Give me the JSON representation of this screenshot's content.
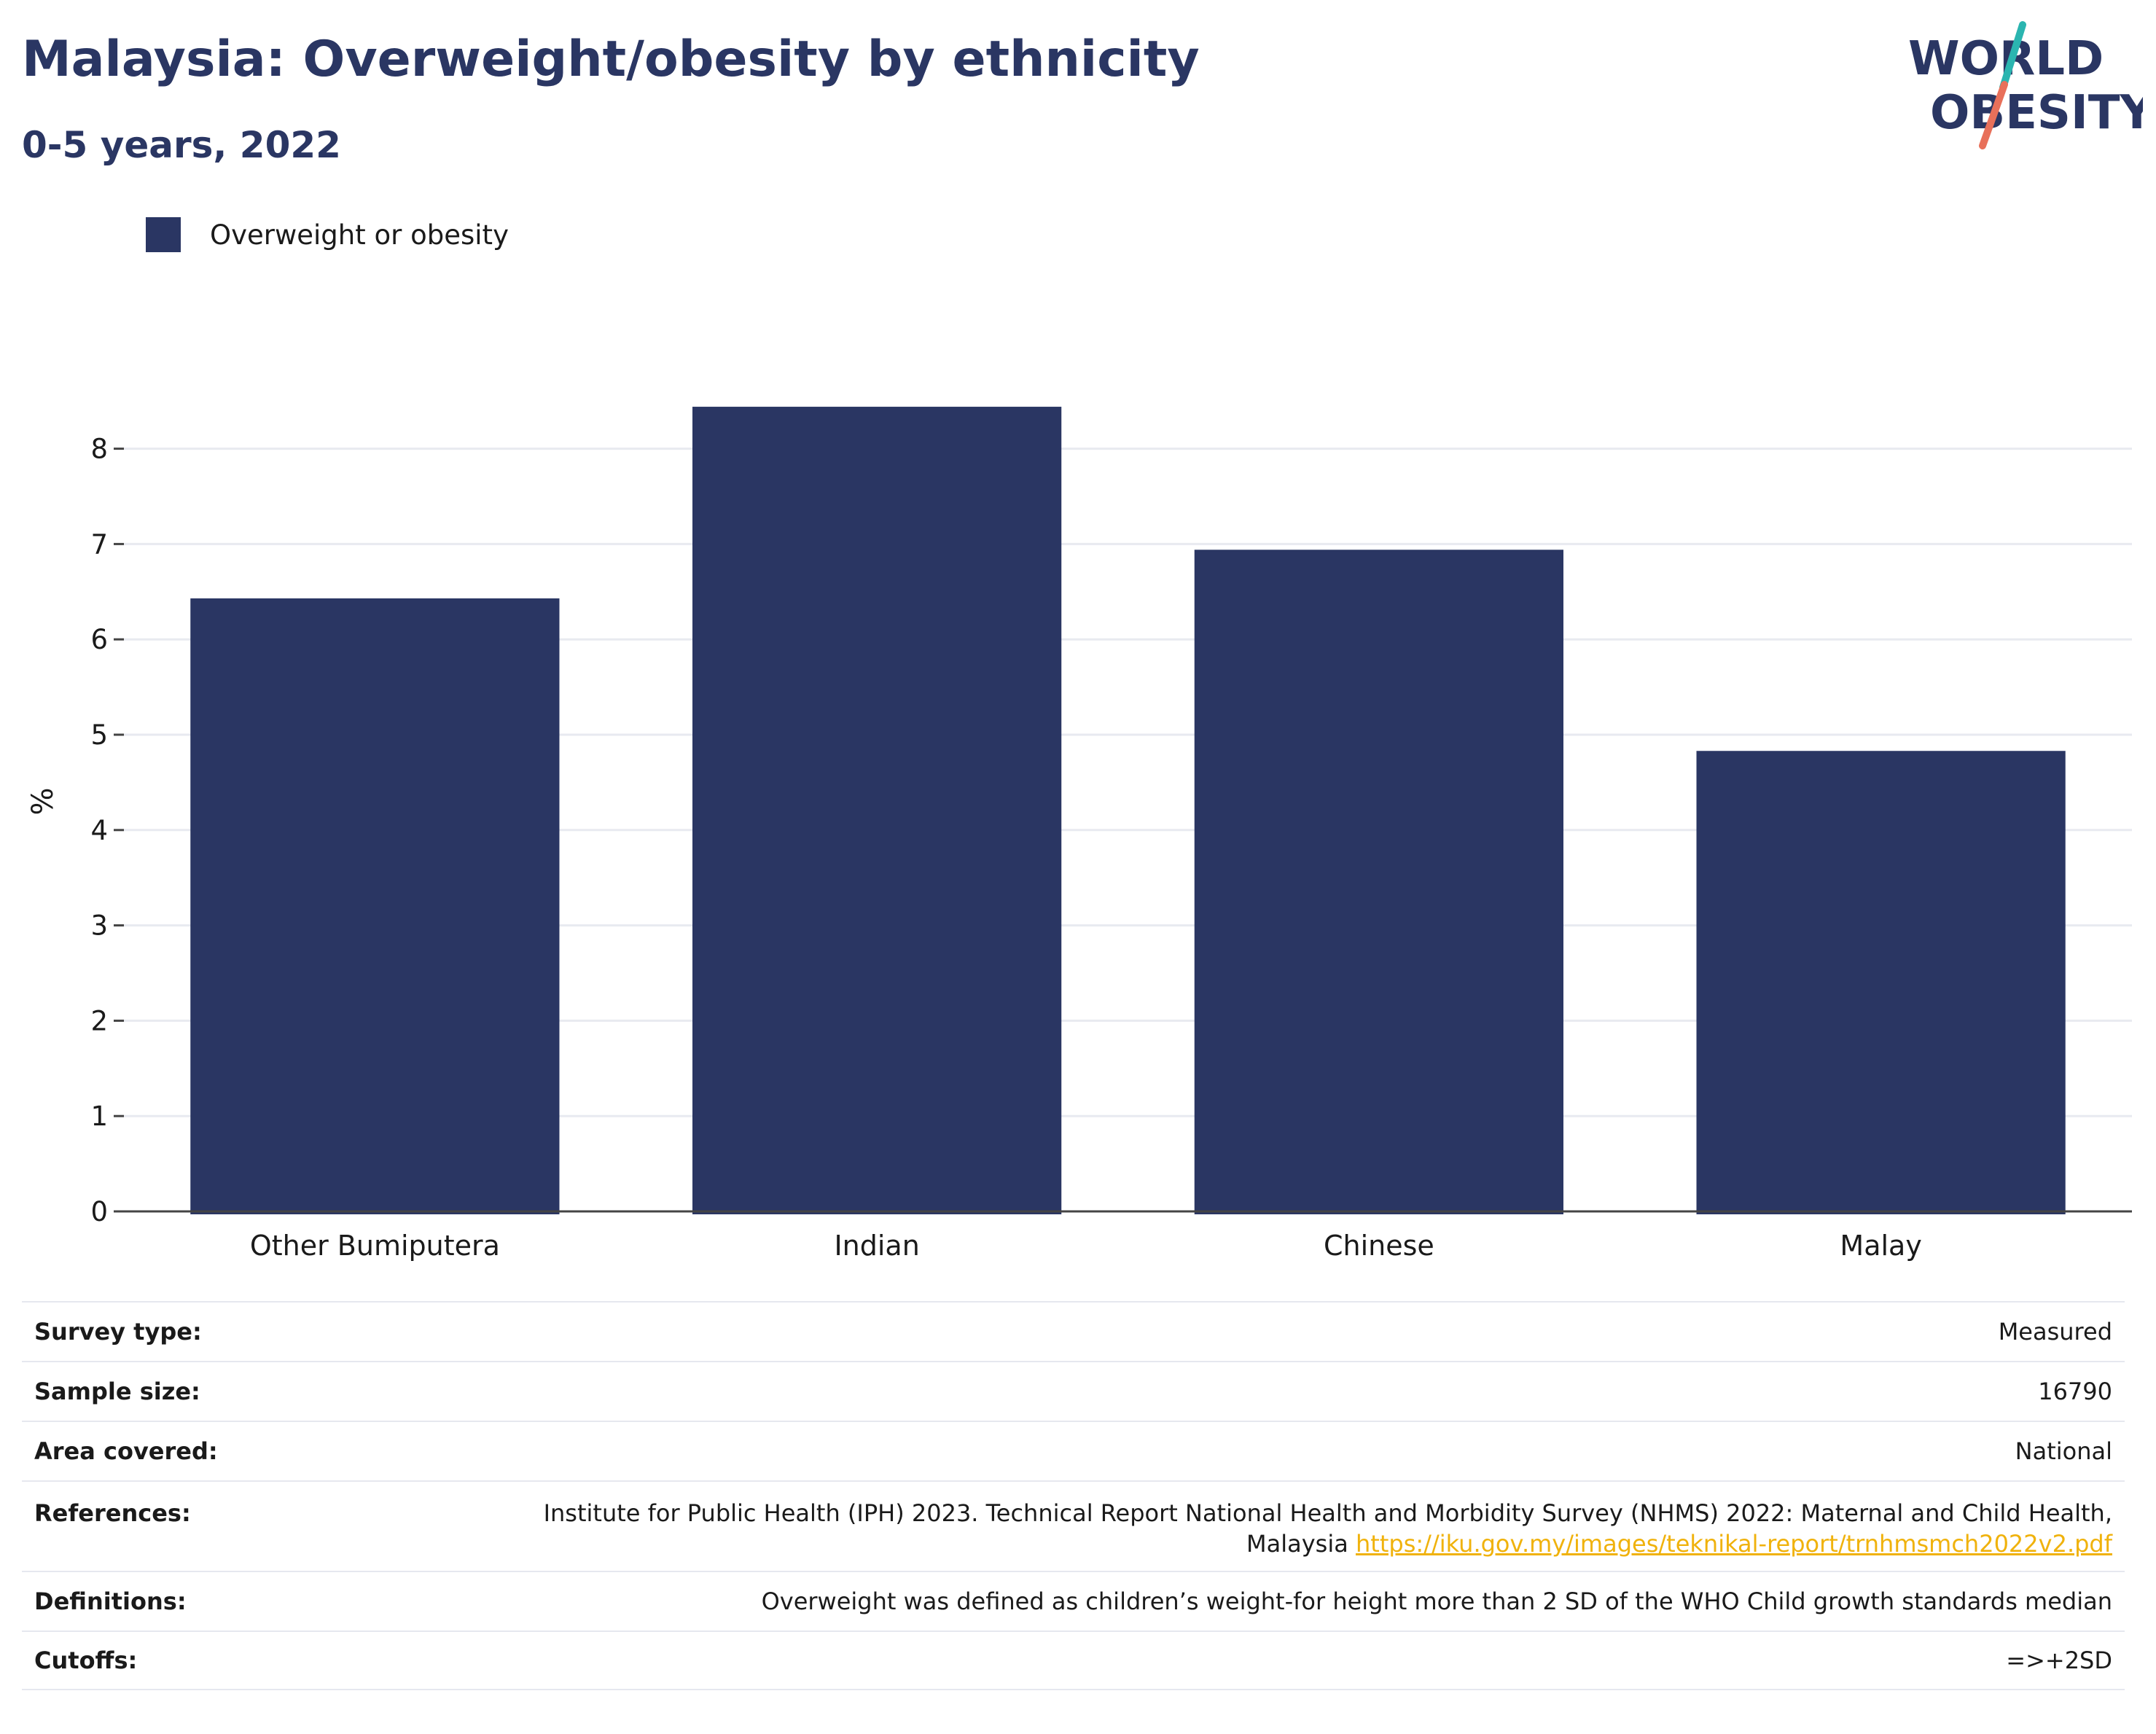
{
  "header": {
    "title": "Malaysia: Overweight/obesity by ethnicity",
    "subtitle": "0-5 years, 2022"
  },
  "logo": {
    "line1": "WORLD",
    "line2": "OBESITY",
    "accent_colors": [
      "#2bb5b0",
      "#e8705a"
    ]
  },
  "legend": {
    "label": "Overweight or obesity",
    "color": "#2a3663"
  },
  "chart_data": {
    "type": "bar",
    "categories": [
      "Other Bumiputera",
      "Indian",
      "Chinese",
      "Malay"
    ],
    "series": [
      {
        "name": "Overweight or obesity",
        "values": [
          6.43,
          8.44,
          6.94,
          4.83
        ]
      }
    ],
    "ylabel": "%",
    "ylim": [
      0,
      9
    ],
    "yticks": [
      0,
      1,
      2,
      3,
      4,
      5,
      6,
      7,
      8
    ],
    "grid": true,
    "legend_position": "top-left",
    "bar_color": "#2a3663"
  },
  "meta": {
    "survey_type": {
      "label": "Survey type:",
      "value": "Measured"
    },
    "sample_size": {
      "label": "Sample size:",
      "value": "16790"
    },
    "area_covered": {
      "label": "Area covered:",
      "value": "National"
    },
    "references": {
      "label": "References:",
      "text_line1": "Institute for Public Health (IPH) 2023. Technical Report National Health and Morbidity Survey (NHMS) 2022: Maternal and Child Health,",
      "text_line2": "Malaysia",
      "link": "https://iku.gov.my/images/teknikal-report/trnhmsmch2022v2.pdf"
    },
    "definitions": {
      "label": "Definitions:",
      "value": "Overweight was defined as children’s weight-for height more than 2 SD of the WHO Child growth standards median"
    },
    "cutoffs": {
      "label": "Cutoffs:",
      "value": "=>+2SD"
    }
  }
}
